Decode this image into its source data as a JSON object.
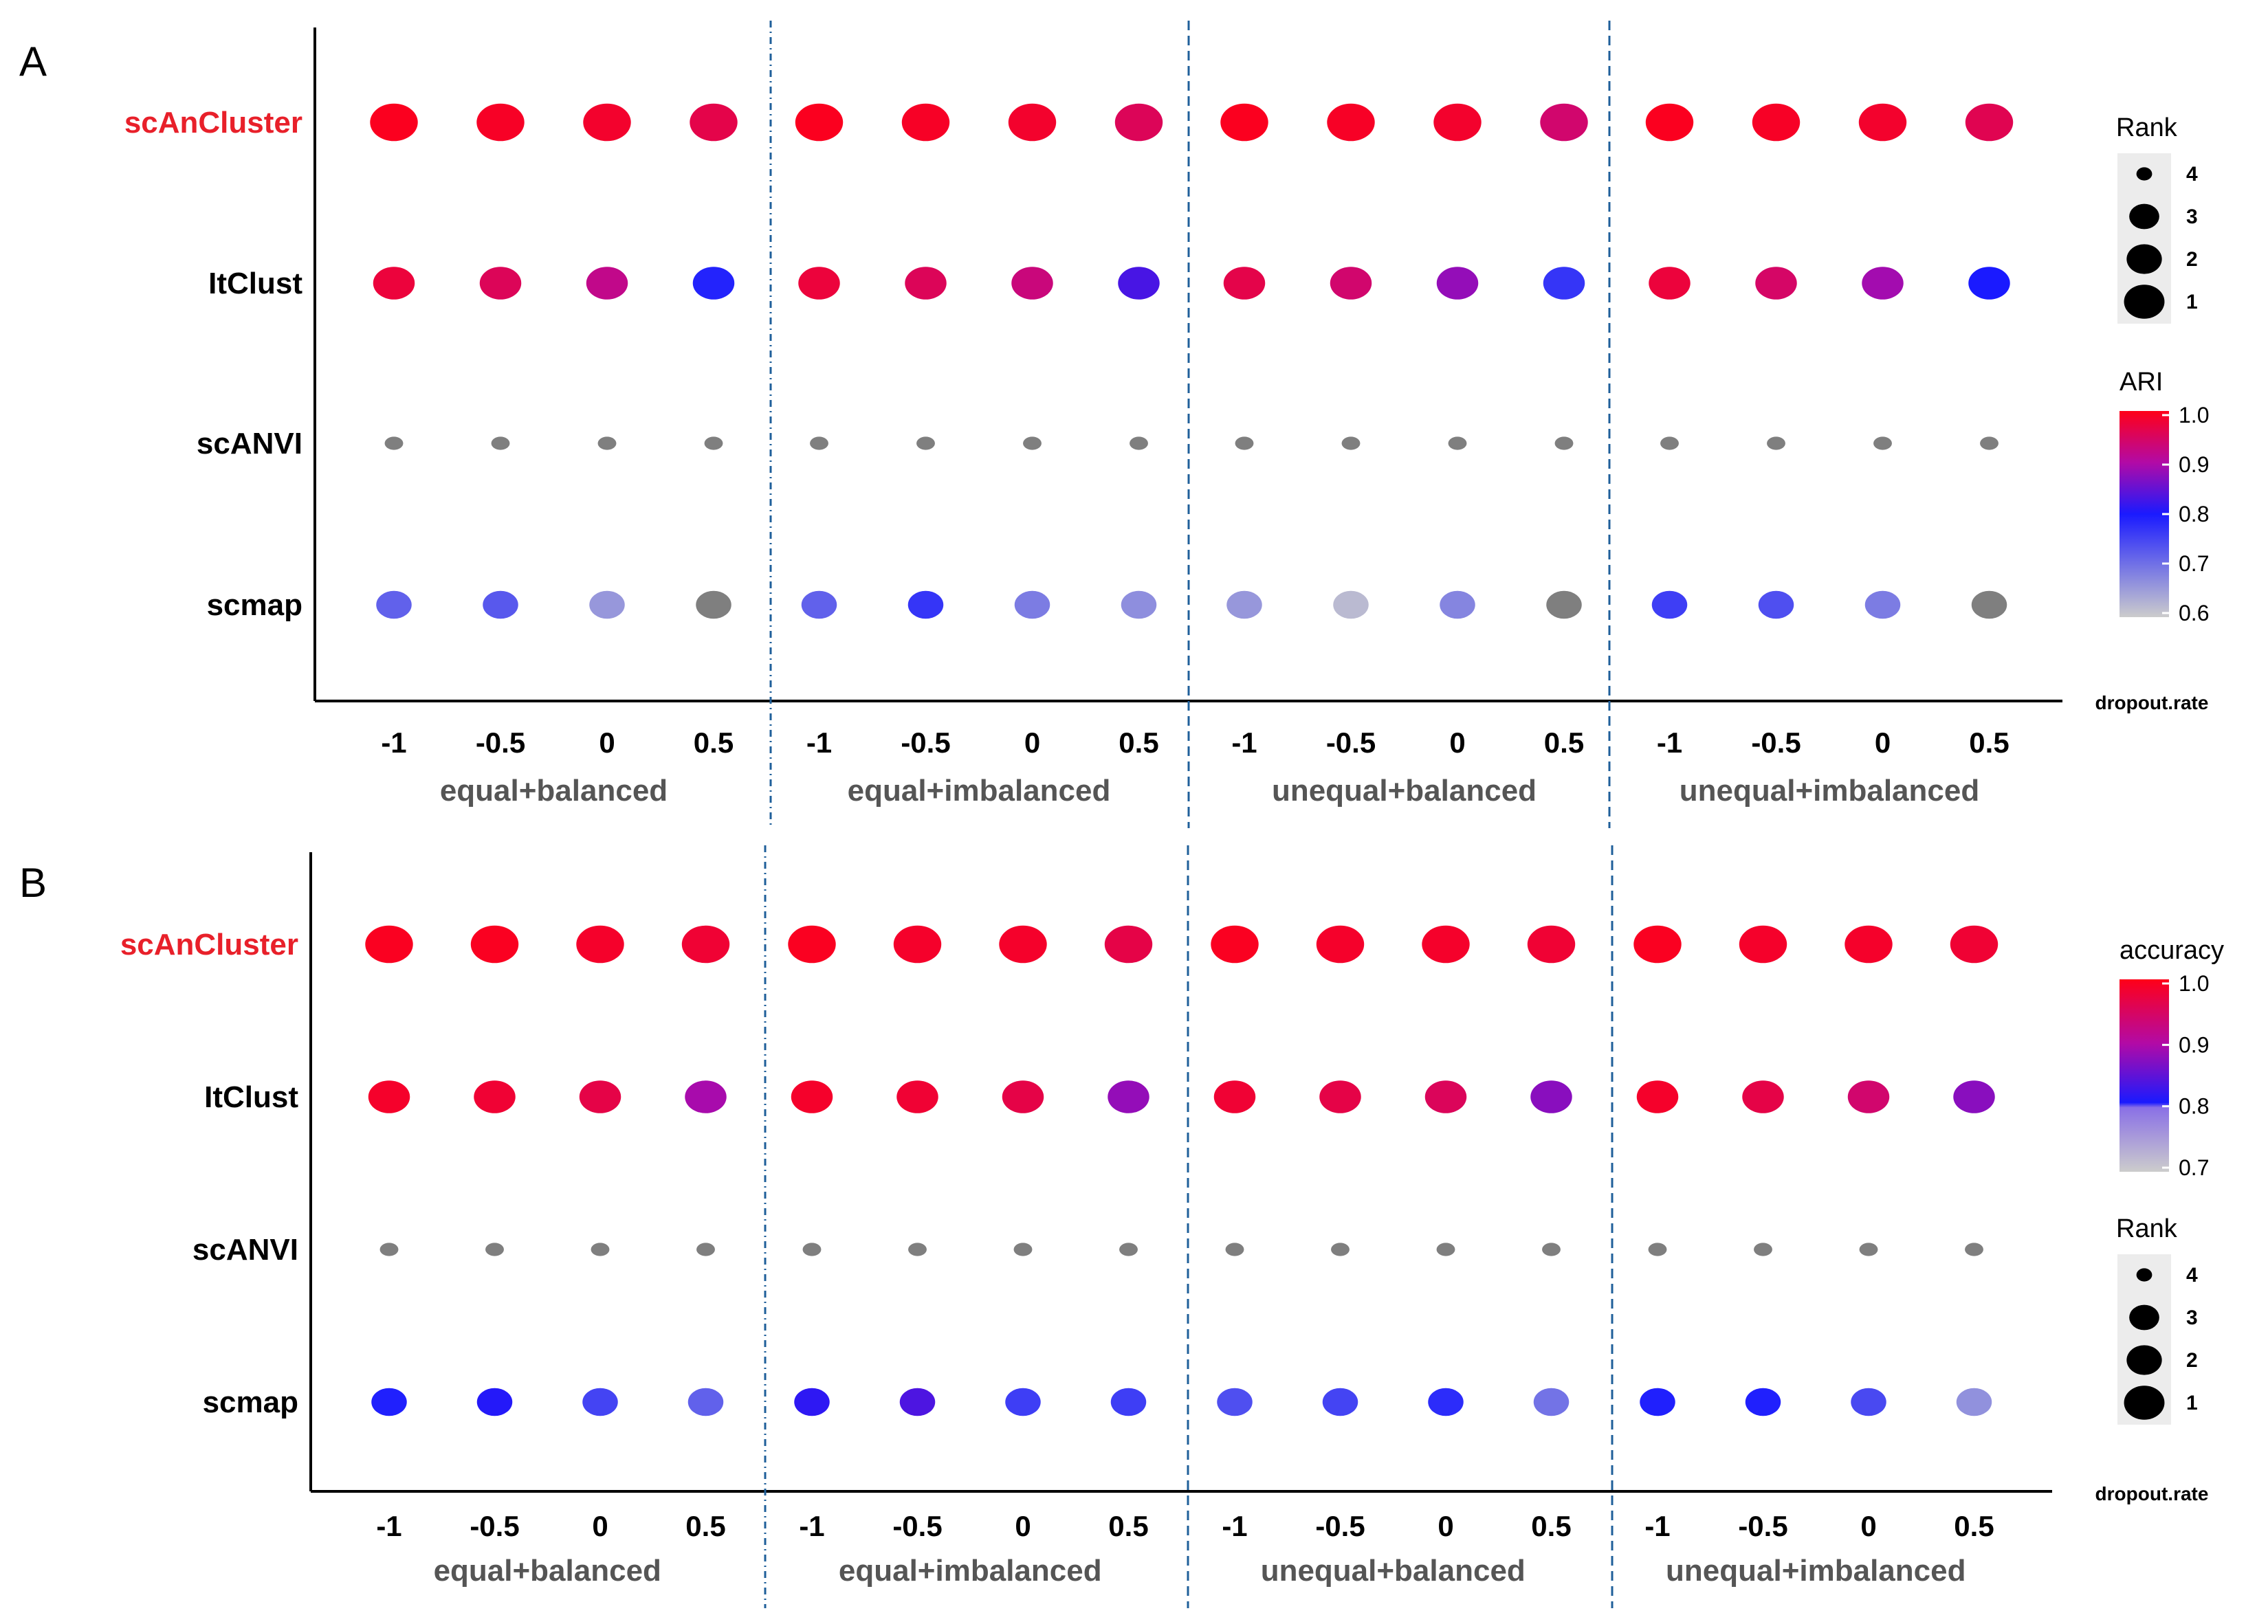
{
  "chart_data": [
    {
      "panel": "A",
      "type": "scatter",
      "xlabel": "dropout.rate",
      "x_ticks": [
        "-1",
        "-0.5",
        "0",
        "0.5"
      ],
      "groups": [
        "equal+balanced",
        "equal+imbalanced",
        "unequal+balanced",
        "unequal+imbalanced"
      ],
      "methods": [
        "scAnCluster",
        "ItClust",
        "scANVI",
        "scmap"
      ],
      "highlight_method": "scAnCluster",
      "highlight_color": "#e8202a",
      "grid": false,
      "color_legend": {
        "title": "ARI",
        "min": 0.6,
        "max": 1.0,
        "ticks": [
          "1.0",
          "0.9",
          "0.8",
          "0.7",
          "0.6"
        ]
      },
      "size_legend": {
        "title": "Rank",
        "ticks": [
          "4",
          "3",
          "2",
          "1"
        ]
      },
      "legend_order": [
        "size",
        "color"
      ],
      "series": [
        {
          "name": "scAnCluster",
          "rank": [
            [
              1,
              1,
              1,
              1
            ],
            [
              1,
              1,
              1,
              1
            ],
            [
              1,
              1,
              1,
              1
            ],
            [
              1,
              1,
              1,
              1
            ]
          ],
          "value": [
            [
              0.995,
              0.99,
              0.985,
              0.965
            ],
            [
              0.995,
              0.99,
              0.985,
              0.955
            ],
            [
              0.995,
              0.99,
              0.985,
              0.94
            ],
            [
              0.995,
              0.99,
              0.985,
              0.96
            ]
          ]
        },
        {
          "name": "ItClust",
          "rank": [
            [
              2,
              2,
              2,
              2
            ],
            [
              2,
              2,
              2,
              2
            ],
            [
              2,
              2,
              2,
              2
            ],
            [
              2,
              2,
              2,
              2
            ]
          ],
          "value": [
            [
              0.975,
              0.955,
              0.92,
              0.79
            ],
            [
              0.975,
              0.955,
              0.93,
              0.83
            ],
            [
              0.965,
              0.94,
              0.88,
              0.77
            ],
            [
              0.975,
              0.945,
              0.89,
              0.8
            ]
          ]
        },
        {
          "name": "scANVI",
          "rank": [
            [
              4,
              4,
              4,
              4
            ],
            [
              4,
              4,
              4,
              4
            ],
            [
              4,
              4,
              4,
              4
            ],
            [
              4,
              4,
              4,
              4
            ]
          ],
          "value": [
            [
              null,
              null,
              null,
              null
            ],
            [
              null,
              null,
              null,
              null
            ],
            [
              null,
              null,
              null,
              null
            ],
            [
              null,
              null,
              null,
              null
            ]
          ]
        },
        {
          "name": "scmap",
          "rank": [
            [
              3,
              3,
              3,
              3
            ],
            [
              3,
              3,
              3,
              3
            ],
            [
              3,
              3,
              3,
              3
            ],
            [
              3,
              3,
              3,
              3
            ]
          ],
          "value": [
            [
              0.72,
              0.73,
              0.66,
              null
            ],
            [
              0.72,
              0.77,
              0.69,
              0.67
            ],
            [
              0.66,
              0.62,
              0.68,
              null
            ],
            [
              0.76,
              0.74,
              0.69,
              null
            ]
          ]
        }
      ],
      "na_color": "#7f7f7f"
    },
    {
      "panel": "B",
      "type": "scatter",
      "xlabel": "dropout.rate",
      "x_ticks": [
        "-1",
        "-0.5",
        "0",
        "0.5"
      ],
      "groups": [
        "equal+balanced",
        "equal+imbalanced",
        "unequal+balanced",
        "unequal+imbalanced"
      ],
      "methods": [
        "scAnCluster",
        "ItClust",
        "scANVI",
        "scmap"
      ],
      "highlight_method": "scAnCluster",
      "highlight_color": "#e8202a",
      "grid": false,
      "color_legend": {
        "title": "accuracy",
        "min": 0.7,
        "max": 1.0,
        "ticks": [
          "1.0",
          "0.9",
          "0.8",
          "0.7"
        ]
      },
      "size_legend": {
        "title": "Rank",
        "ticks": [
          "4",
          "3",
          "2",
          "1"
        ]
      },
      "legend_order": [
        "color",
        "size"
      ],
      "series": [
        {
          "name": "scAnCluster",
          "rank": [
            [
              1,
              1,
              1,
              1
            ],
            [
              1,
              1,
              1,
              1
            ],
            [
              1,
              1,
              1,
              1
            ],
            [
              1,
              1,
              1,
              1
            ]
          ],
          "value": [
            [
              0.995,
              0.995,
              0.99,
              0.985
            ],
            [
              0.995,
              0.99,
              0.99,
              0.975
            ],
            [
              0.995,
              0.99,
              0.99,
              0.985
            ],
            [
              0.995,
              0.99,
              0.99,
              0.985
            ]
          ]
        },
        {
          "name": "ItClust",
          "rank": [
            [
              2,
              2,
              2,
              2
            ],
            [
              2,
              2,
              2,
              2
            ],
            [
              2,
              2,
              2,
              2
            ],
            [
              2,
              2,
              2,
              2
            ]
          ],
          "value": [
            [
              0.99,
              0.985,
              0.975,
              0.92
            ],
            [
              0.99,
              0.985,
              0.975,
              0.91
            ],
            [
              0.985,
              0.975,
              0.965,
              0.905
            ],
            [
              0.99,
              0.975,
              0.955,
              0.905
            ]
          ]
        },
        {
          "name": "scANVI",
          "rank": [
            [
              4,
              4,
              4,
              4
            ],
            [
              4,
              4,
              4,
              4
            ],
            [
              4,
              4,
              4,
              4
            ],
            [
              4,
              4,
              4,
              4
            ]
          ],
          "value": [
            [
              null,
              null,
              null,
              null
            ],
            [
              null,
              null,
              null,
              null
            ],
            [
              null,
              null,
              null,
              null
            ],
            [
              null,
              null,
              null,
              null
            ]
          ]
        },
        {
          "name": "scmap",
          "rank": [
            [
              3,
              3,
              3,
              3
            ],
            [
              3,
              3,
              3,
              3
            ],
            [
              3,
              3,
              3,
              3
            ],
            [
              3,
              3,
              3,
              3
            ]
          ],
          "value": [
            [
              0.845,
              0.855,
              0.815,
              0.79
            ],
            [
              0.86,
              0.875,
              0.82,
              0.82
            ],
            [
              0.805,
              0.815,
              0.835,
              0.775
            ],
            [
              0.845,
              0.845,
              0.81,
              0.75
            ]
          ]
        }
      ],
      "na_color": "#7f7f7f"
    }
  ]
}
